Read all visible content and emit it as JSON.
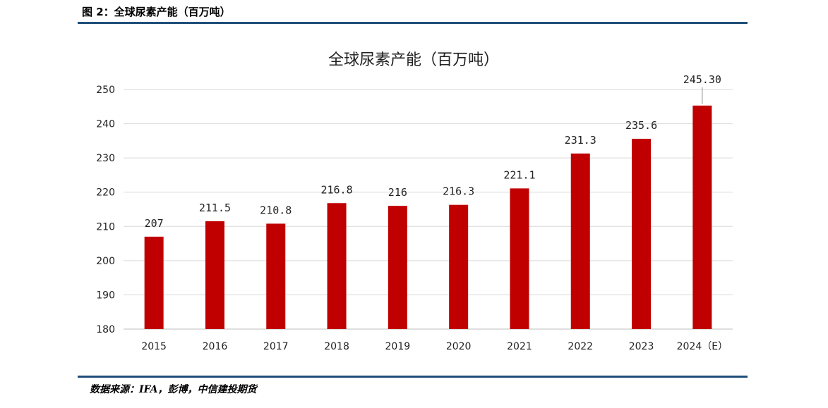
{
  "figure": {
    "caption": "图 2：全球尿素产能（百万吨）",
    "source": "数据来源：IFA，彭博，中信建投期货"
  },
  "colors": {
    "bar": "#c00000",
    "grid": "#d9d9d9",
    "rule": "#1f4e79"
  },
  "chart_data": {
    "type": "bar",
    "title": "全球尿素产能（百万吨）",
    "xlabel": "",
    "ylabel": "",
    "categories": [
      "2015",
      "2016",
      "2017",
      "2018",
      "2019",
      "2020",
      "2021",
      "2022",
      "2023",
      "2024（E）"
    ],
    "values": [
      207,
      211.5,
      210.8,
      216.8,
      216,
      216.3,
      221.1,
      231.3,
      235.6,
      245.3
    ],
    "data_labels": [
      "207",
      "211.5",
      "210.8",
      "216.8",
      "216",
      "216.3",
      "221.1",
      "231.3",
      "235.6",
      "245.30"
    ],
    "ylim": [
      180,
      250
    ],
    "yticks": [
      "180",
      "190",
      "200",
      "210",
      "220",
      "230",
      "240",
      "250"
    ],
    "grid": true,
    "legend": "none"
  }
}
